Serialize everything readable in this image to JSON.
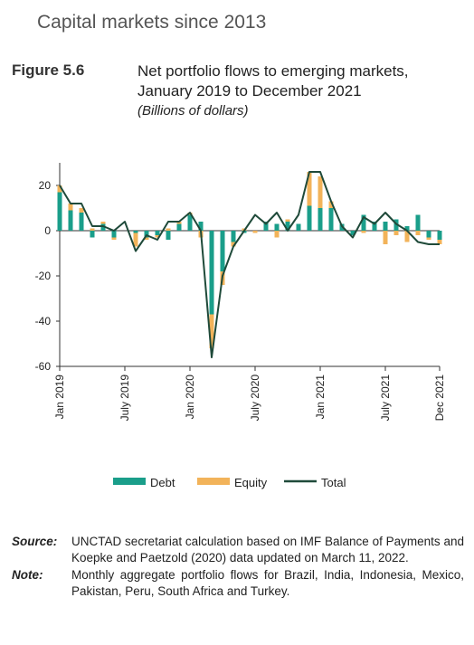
{
  "header": {
    "section_title": "Capital markets since 2013",
    "figure_label": "Figure 5.6",
    "figure_title_line1": "Net portfolio flows to emerging markets,",
    "figure_title_line2": "January 2019 to December 2021",
    "figure_unit": "(Billions of dollars)"
  },
  "legend": {
    "debt": "Debt",
    "equity": "Equity",
    "total": "Total"
  },
  "colors": {
    "debt": "#1a9e8a",
    "equity": "#f2b35a",
    "total": "#1f4a3a",
    "axis": "#333333"
  },
  "chart_data": {
    "type": "bar",
    "stacked": true,
    "ylim": [
      -60,
      30
    ],
    "yticks": [
      20,
      0,
      -20,
      -40,
      -60
    ],
    "xtick_labels": [
      {
        "index": 0,
        "label": "Jan 2019"
      },
      {
        "index": 6,
        "label": "July 2019"
      },
      {
        "index": 12,
        "label": "Jan 2020"
      },
      {
        "index": 18,
        "label": "July 2020"
      },
      {
        "index": 24,
        "label": "Jan 2021"
      },
      {
        "index": 30,
        "label": "July 2021"
      },
      {
        "index": 35,
        "label": "Dec 2021"
      }
    ],
    "series": [
      {
        "name": "Debt",
        "values": [
          17,
          9,
          8,
          -3,
          3,
          -3,
          0,
          -1,
          -3,
          -2,
          -4,
          3,
          7,
          4,
          -37,
          -18,
          -5,
          -1,
          0,
          4,
          3,
          4,
          3,
          11,
          10,
          10,
          3,
          -2,
          7,
          4,
          4,
          5,
          2,
          7,
          -3,
          -4
        ]
      },
      {
        "name": "Equity",
        "values": [
          3,
          3,
          2,
          1,
          1,
          -1,
          0,
          -6,
          -1,
          -1,
          1,
          1,
          1,
          -3,
          -15,
          -6,
          -2,
          1,
          -1,
          0,
          -3,
          1,
          0,
          15,
          14,
          3,
          0,
          0,
          -1,
          0,
          -6,
          -2,
          -5,
          -2,
          -1,
          -2
        ]
      },
      {
        "name": "Total",
        "values": [
          20,
          12,
          12,
          2,
          2,
          0,
          4,
          -9,
          -2,
          -4,
          4,
          4,
          8,
          0,
          -56,
          -20,
          -7,
          0,
          7,
          3,
          8,
          0,
          7,
          26,
          26,
          13,
          2,
          -3,
          6,
          3,
          8,
          3,
          0,
          -5,
          -6,
          -6
        ]
      }
    ]
  },
  "notes": {
    "source_label": "Source:",
    "source_text": "UNCTAD secretariat calculation based on IMF Balance of Payments and Koepke and Paetzold (2020) data updated on March 11, 2022.",
    "note_label": "Note:",
    "note_text": "Monthly aggregate portfolio flows for Brazil, India, Indonesia, Mexico, Pakistan, Peru, South Africa and Turkey."
  }
}
